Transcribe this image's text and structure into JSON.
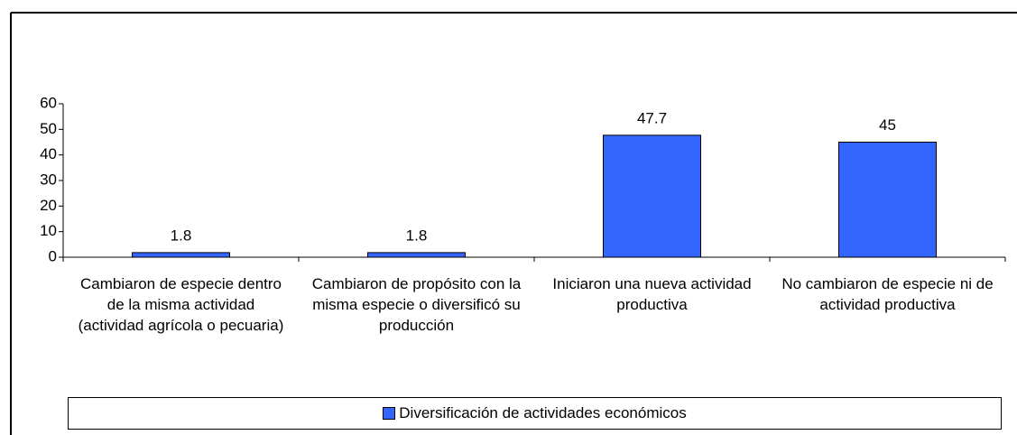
{
  "chart_data": {
    "type": "bar",
    "categories": [
      "Cambiaron de especie dentro de la misma actividad (actividad agrícola o pecuaria)",
      "Cambiaron de propósito con la misma especie o diversificó su producción",
      "Iniciaron una nueva actividad productiva",
      "No cambiaron de especie ni de actividad productiva"
    ],
    "series": [
      {
        "name": "Diversificación de actividades económicos",
        "color": "#3366ff",
        "values": [
          1.8,
          1.8,
          47.7,
          45
        ]
      }
    ],
    "ylim": [
      0,
      60
    ],
    "yticks": [
      0,
      10,
      20,
      30,
      40,
      50,
      60
    ],
    "legend": "bottom"
  }
}
